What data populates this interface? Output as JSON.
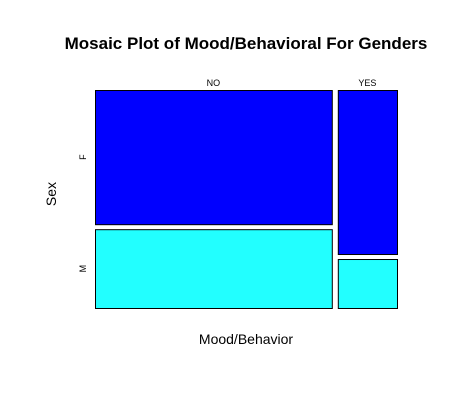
{
  "chart_data": {
    "type": "mosaic",
    "title": "Mosaic Plot of Mood/Behavioral For Genders",
    "xlabel": "Mood/Behavior",
    "ylabel": "Sex",
    "x_categories": [
      "NO",
      "YES"
    ],
    "y_categories": [
      "F",
      "M"
    ],
    "x_proportions": [
      0.8,
      0.2
    ],
    "conditional_proportions": {
      "NO": {
        "F": 0.63,
        "M": 0.37
      },
      "YES": {
        "F": 0.77,
        "M": 0.23
      }
    },
    "colors": {
      "F": "#0000FF",
      "M": "#22FFFF"
    },
    "grid": false,
    "legend": "none"
  }
}
